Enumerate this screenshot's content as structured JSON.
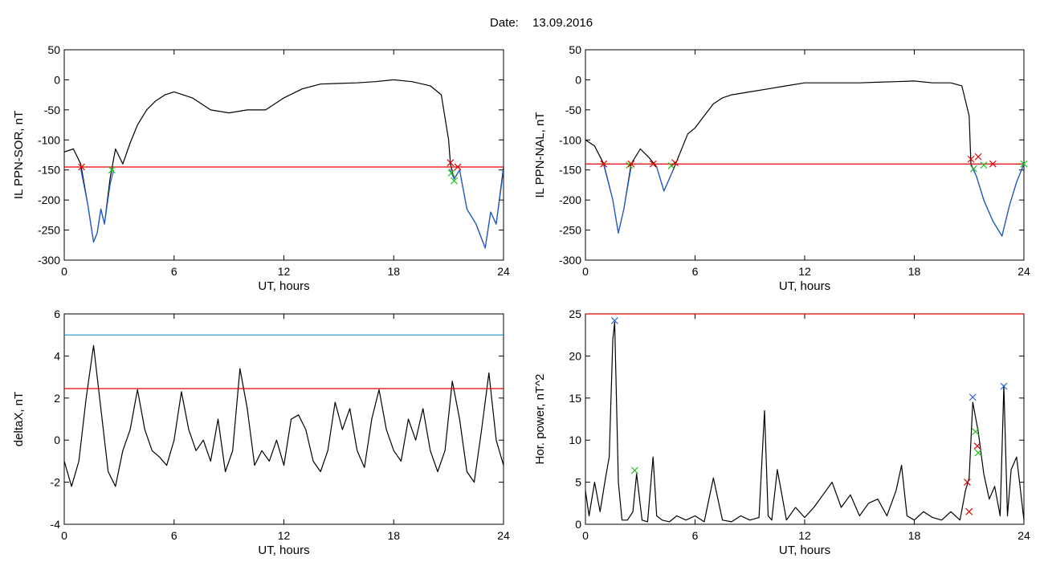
{
  "figure": {
    "date_label": "Date:",
    "date_value": "13.09.2016"
  },
  "chart_data": [
    {
      "type": "line",
      "xlabel": "UT, hours",
      "ylabel": "IL PPN-SOR, nT",
      "xlim": [
        0,
        24
      ],
      "ylim": [
        -300,
        50
      ],
      "xticks": [
        "0",
        "6",
        "12",
        "18",
        "24"
      ],
      "yticks": [
        "-300",
        "-250",
        "-200",
        "-150",
        "-100",
        "-50",
        "0",
        "50"
      ],
      "threshold": {
        "value": -145,
        "color": "#e00000"
      },
      "series": [
        {
          "color": "#000000",
          "x": [
            0,
            0.5,
            0.9,
            1.3,
            1.6,
            1.8,
            2.0,
            2.2,
            2.5,
            2.8,
            3.2,
            3.6,
            4.0,
            4.5,
            5.0,
            5.5,
            6.0,
            7.0,
            8.0,
            9.0,
            10.0,
            11.0,
            12.0,
            13.0,
            14.0,
            15.0,
            16.0,
            17.0,
            18.0,
            19.0,
            20.0,
            20.6,
            21.0,
            21.1,
            21.3,
            21.6,
            22.0,
            22.5,
            23.0,
            23.3,
            23.6,
            24.0
          ],
          "y": [
            -120,
            -115,
            -140,
            -210,
            -270,
            -255,
            -215,
            -240,
            -165,
            -115,
            -140,
            -105,
            -75,
            -50,
            -35,
            -25,
            -20,
            -30,
            -50,
            -55,
            -50,
            -50,
            -30,
            -15,
            -7,
            -6,
            -5,
            -3,
            0,
            -3,
            -10,
            -25,
            -100,
            -140,
            -165,
            -150,
            -215,
            -240,
            -280,
            -220,
            -240,
            -145
          ]
        },
        {
          "color": "#1f5fd0",
          "x": [
            0.9,
            1.3,
            1.6,
            1.8,
            2.0,
            2.2,
            2.5,
            2.7
          ],
          "y": [
            -148,
            -210,
            -270,
            -255,
            -215,
            -240,
            -175,
            -150
          ]
        },
        {
          "color": "#1f5fd0",
          "x": [
            21.05,
            21.3,
            21.6,
            22.0,
            22.5,
            23.0,
            23.3,
            23.6,
            24.0
          ],
          "y": [
            -148,
            -165,
            -150,
            -215,
            -240,
            -280,
            -220,
            -240,
            -150
          ]
        }
      ],
      "markers": [
        {
          "x": 0.95,
          "y": -145,
          "color": "#e00000"
        },
        {
          "x": 2.6,
          "y": -150,
          "color": "#20c020"
        },
        {
          "x": 21.1,
          "y": -138,
          "color": "#e00000"
        },
        {
          "x": 21.15,
          "y": -155,
          "color": "#20c020"
        },
        {
          "x": 21.3,
          "y": -168,
          "color": "#20c020"
        },
        {
          "x": 21.5,
          "y": -145,
          "color": "#e00000"
        }
      ]
    },
    {
      "type": "line",
      "xlabel": "UT, hours",
      "ylabel": "IL PPN-NAL, nT",
      "xlim": [
        0,
        24
      ],
      "ylim": [
        -300,
        50
      ],
      "xticks": [
        "0",
        "6",
        "12",
        "18",
        "24"
      ],
      "yticks": [
        "-300",
        "-250",
        "-200",
        "-150",
        "-100",
        "-50",
        "0",
        "50"
      ],
      "threshold": {
        "value": -140,
        "color": "#e00000"
      },
      "series": [
        {
          "color": "#000000",
          "x": [
            0,
            0.5,
            1.0,
            1.5,
            1.8,
            2.1,
            2.5,
            3.0,
            3.5,
            3.9,
            4.3,
            4.8,
            5.2,
            5.6,
            6.0,
            6.5,
            7.0,
            7.5,
            8.0,
            9.0,
            10.0,
            11.0,
            12.0,
            13.0,
            14.0,
            15.0,
            16.0,
            17.0,
            18.0,
            19.0,
            20.0,
            20.6,
            21.0,
            21.1,
            21.4,
            21.8,
            22.3,
            22.8,
            23.2,
            23.6,
            24.0
          ],
          "y": [
            -100,
            -110,
            -140,
            -200,
            -255,
            -215,
            -140,
            -115,
            -130,
            -145,
            -185,
            -150,
            -120,
            -90,
            -80,
            -60,
            -40,
            -30,
            -25,
            -20,
            -15,
            -10,
            -5,
            -5,
            -5,
            -5,
            -4,
            -3,
            -2,
            -5,
            -5,
            -10,
            -60,
            -140,
            -160,
            -200,
            -235,
            -260,
            -210,
            -170,
            -140
          ]
        },
        {
          "color": "#1f5fd0",
          "x": [
            1.0,
            1.5,
            1.8,
            2.1,
            2.5
          ],
          "y": [
            -142,
            -200,
            -255,
            -215,
            -145
          ]
        },
        {
          "color": "#1f5fd0",
          "x": [
            3.9,
            4.3,
            4.8
          ],
          "y": [
            -145,
            -185,
            -150
          ]
        },
        {
          "color": "#1f5fd0",
          "x": [
            21.1,
            21.4,
            21.8,
            22.3,
            22.8,
            23.2,
            23.6,
            24.0
          ],
          "y": [
            -142,
            -160,
            -200,
            -235,
            -260,
            -210,
            -170,
            -140
          ]
        }
      ],
      "markers": [
        {
          "x": 1.0,
          "y": -140,
          "color": "#e00000"
        },
        {
          "x": 2.4,
          "y": -142,
          "color": "#20c020"
        },
        {
          "x": 2.5,
          "y": -140,
          "color": "#e00000"
        },
        {
          "x": 3.7,
          "y": -140,
          "color": "#e00000"
        },
        {
          "x": 4.7,
          "y": -143,
          "color": "#20c020"
        },
        {
          "x": 4.9,
          "y": -138,
          "color": "#e00000"
        },
        {
          "x": 21.1,
          "y": -132,
          "color": "#e00000"
        },
        {
          "x": 21.25,
          "y": -148,
          "color": "#20c020"
        },
        {
          "x": 21.5,
          "y": -128,
          "color": "#e00000"
        },
        {
          "x": 21.8,
          "y": -142,
          "color": "#20c020"
        },
        {
          "x": 22.3,
          "y": -140,
          "color": "#e00000"
        },
        {
          "x": 24.0,
          "y": -140,
          "color": "#20c020"
        }
      ]
    },
    {
      "type": "line",
      "xlabel": "UT, hours",
      "ylabel": "deltaX, nT",
      "xlim": [
        0,
        24
      ],
      "ylim": [
        -4,
        6
      ],
      "xticks": [
        "0",
        "6",
        "12",
        "18",
        "24"
      ],
      "yticks": [
        "-4",
        "-2",
        "0",
        "2",
        "4",
        "6"
      ],
      "thresholds": [
        {
          "value": 5.0,
          "color": "#1f8fc0"
        },
        {
          "value": 2.45,
          "color": "#e00000"
        }
      ],
      "series": [
        {
          "color": "#000000",
          "x": [
            0,
            0.4,
            0.8,
            1.2,
            1.6,
            2.0,
            2.4,
            2.8,
            3.2,
            3.6,
            4.0,
            4.4,
            4.8,
            5.2,
            5.6,
            6.0,
            6.4,
            6.8,
            7.2,
            7.6,
            8.0,
            8.4,
            8.8,
            9.2,
            9.6,
            10.0,
            10.4,
            10.8,
            11.2,
            11.6,
            12.0,
            12.4,
            12.8,
            13.2,
            13.6,
            14.0,
            14.4,
            14.8,
            15.2,
            15.6,
            16.0,
            16.4,
            16.8,
            17.2,
            17.6,
            18.0,
            18.4,
            18.8,
            19.2,
            19.6,
            20.0,
            20.4,
            20.8,
            21.2,
            21.6,
            22.0,
            22.4,
            22.8,
            23.2,
            23.6,
            24.0
          ],
          "y": [
            -1.0,
            -2.2,
            -1.0,
            2.0,
            4.5,
            1.5,
            -1.5,
            -2.2,
            -0.5,
            0.5,
            2.4,
            0.5,
            -0.5,
            -0.8,
            -1.2,
            0.0,
            2.3,
            0.5,
            -0.5,
            0.0,
            -1.0,
            1.0,
            -1.5,
            -0.5,
            3.4,
            1.5,
            -1.2,
            -0.5,
            -1.0,
            0.0,
            -1.2,
            1.0,
            1.2,
            0.5,
            -1.0,
            -1.5,
            -0.5,
            1.8,
            0.5,
            1.5,
            -0.5,
            -1.3,
            1.0,
            2.4,
            0.5,
            -0.5,
            -1.0,
            1.0,
            0.0,
            1.5,
            -0.5,
            -1.5,
            -0.5,
            2.8,
            1.0,
            -1.5,
            -2.0,
            0.5,
            3.2,
            0.0,
            -1.2
          ]
        }
      ],
      "markers": []
    },
    {
      "type": "line",
      "xlabel": "UT, hours",
      "ylabel": "Hor. power, nT^2",
      "xlim": [
        0,
        24
      ],
      "ylim": [
        0,
        25
      ],
      "xticks": [
        "0",
        "6",
        "12",
        "18",
        "24"
      ],
      "yticks": [
        "0",
        "5",
        "10",
        "15",
        "20",
        "25"
      ],
      "threshold": {
        "value": 25,
        "color": "#e00000"
      },
      "series": [
        {
          "color": "#000000",
          "x": [
            0,
            0.2,
            0.5,
            0.8,
            1.1,
            1.3,
            1.5,
            1.6,
            1.8,
            2.0,
            2.3,
            2.6,
            2.8,
            3.1,
            3.4,
            3.7,
            3.9,
            4.2,
            4.6,
            5.0,
            5.5,
            6.0,
            6.5,
            7.0,
            7.5,
            8.0,
            8.5,
            9.0,
            9.5,
            9.8,
            10.0,
            10.2,
            10.5,
            11.0,
            11.5,
            12.0,
            12.5,
            13.0,
            13.5,
            14.0,
            14.5,
            15.0,
            15.5,
            16.0,
            16.5,
            17.0,
            17.3,
            17.6,
            18.0,
            18.5,
            19.0,
            19.5,
            20.0,
            20.5,
            20.8,
            21.0,
            21.2,
            21.5,
            21.8,
            22.1,
            22.4,
            22.7,
            22.9,
            23.1,
            23.3,
            23.6,
            24.0
          ],
          "y": [
            4.0,
            1.0,
            5.0,
            1.5,
            5.5,
            8.0,
            22.0,
            24.0,
            5.0,
            0.5,
            0.5,
            1.5,
            6.0,
            0.5,
            0.3,
            8.0,
            1.0,
            0.5,
            0.3,
            1.0,
            0.5,
            1.0,
            0.3,
            5.5,
            0.5,
            0.3,
            1.0,
            0.5,
            0.8,
            13.5,
            1.0,
            0.5,
            6.5,
            0.5,
            2.0,
            0.8,
            2.0,
            3.5,
            5.0,
            2.0,
            3.5,
            1.0,
            2.5,
            3.0,
            1.0,
            4.0,
            7.0,
            1.0,
            0.5,
            1.5,
            0.8,
            0.5,
            1.5,
            0.5,
            4.0,
            5.5,
            14.5,
            11.0,
            6.0,
            3.0,
            4.5,
            1.0,
            16.5,
            1.0,
            6.5,
            8.0,
            0.5
          ]
        }
      ],
      "markers": [
        {
          "x": 1.6,
          "y": 24.2,
          "color": "#1f5fd0"
        },
        {
          "x": 2.7,
          "y": 6.4,
          "color": "#20c020"
        },
        {
          "x": 20.9,
          "y": 5.0,
          "color": "#e00000"
        },
        {
          "x": 21.0,
          "y": 1.5,
          "color": "#e00000"
        },
        {
          "x": 21.2,
          "y": 15.1,
          "color": "#1f5fd0"
        },
        {
          "x": 21.35,
          "y": 11.0,
          "color": "#20c020"
        },
        {
          "x": 21.45,
          "y": 9.3,
          "color": "#e00000"
        },
        {
          "x": 21.5,
          "y": 8.5,
          "color": "#20c020"
        },
        {
          "x": 22.9,
          "y": 16.4,
          "color": "#1f5fd0"
        }
      ]
    }
  ]
}
